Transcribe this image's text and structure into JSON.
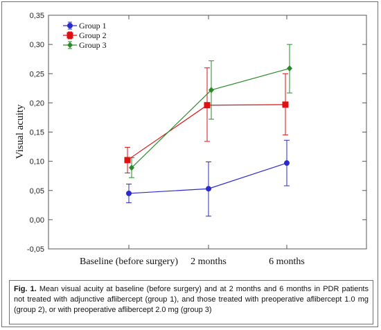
{
  "chart_data": {
    "type": "line",
    "xlabel": "",
    "ylabel": "Visual acuity",
    "categories": [
      "Baseline (before surgery)",
      "2 months",
      "6 months"
    ],
    "ylim": [
      -0.05,
      0.35
    ],
    "yticks": [
      "-0,05",
      "0,00",
      "0,05",
      "0,10",
      "0,15",
      "0,20",
      "0,25",
      "0,30",
      "0,35"
    ],
    "grid": false,
    "legend_placement": "top-left",
    "series": [
      {
        "name": "Group 1",
        "color": "#2a2acc",
        "marker": "circle",
        "values": [
          0.045,
          0.053,
          0.097
        ],
        "lower": [
          0.029,
          0.006,
          0.058
        ],
        "upper": [
          0.061,
          0.099,
          0.136
        ]
      },
      {
        "name": "Group 2",
        "color": "#dd1111",
        "marker": "square",
        "values": [
          0.102,
          0.196,
          0.197
        ],
        "lower": [
          0.08,
          0.134,
          0.145
        ],
        "upper": [
          0.124,
          0.26,
          0.25
        ]
      },
      {
        "name": "Group 3",
        "color": "#2a8a2a",
        "marker": "diamond",
        "values": [
          0.089,
          0.222,
          0.259
        ],
        "lower": [
          0.072,
          0.172,
          0.217
        ],
        "upper": [
          0.106,
          0.272,
          0.3
        ]
      }
    ]
  },
  "caption": {
    "label": "Fig. 1.",
    "text": "Mean visual acuity at baseline (before surgery) and at 2 months and 6 months in PDR patients not treated with adjunctive aflibercept (group 1), and those treated with preoperative aflibercept 1.0 mg (group 2), or with preoperative aflibercept 2.0 mg (group 3)"
  }
}
